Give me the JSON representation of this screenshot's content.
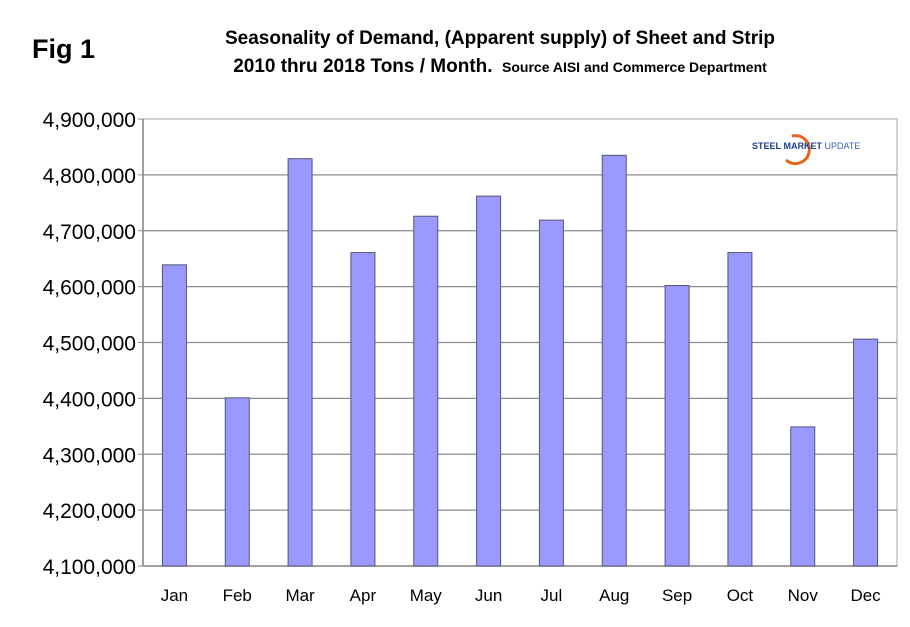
{
  "fig_label": "Fig 1",
  "logo": {
    "part1": "STEEL",
    "part2": "MARKET",
    "part3": "UPDATE"
  },
  "chart_data": {
    "type": "bar",
    "title": "Seasonality of Demand, (Apparent supply) of Sheet and Strip",
    "title_line2": "2010 thru 2018 Tons / Month.",
    "subtitle": "Source AISI and Commerce Department",
    "xlabel": "",
    "ylabel": "",
    "ylim": [
      4100000,
      4900000
    ],
    "yticks": [
      4100000,
      4200000,
      4300000,
      4400000,
      4500000,
      4600000,
      4700000,
      4800000,
      4900000
    ],
    "ytick_labels": [
      "4,100,000",
      "4,200,000",
      "4,300,000",
      "4,400,000",
      "4,500,000",
      "4,600,000",
      "4,700,000",
      "4,800,000",
      "4,900,000"
    ],
    "grid": true,
    "categories": [
      "Jan",
      "Feb",
      "Mar",
      "Apr",
      "May",
      "Jun",
      "Jul",
      "Aug",
      "Sep",
      "Oct",
      "Nov",
      "Dec"
    ],
    "values": [
      4639000,
      4401000,
      4829000,
      4661000,
      4726000,
      4762000,
      4719000,
      4835000,
      4602000,
      4661000,
      4349000,
      4506000
    ],
    "bar_color": "#9999ff",
    "bar_stroke": "#555577"
  }
}
